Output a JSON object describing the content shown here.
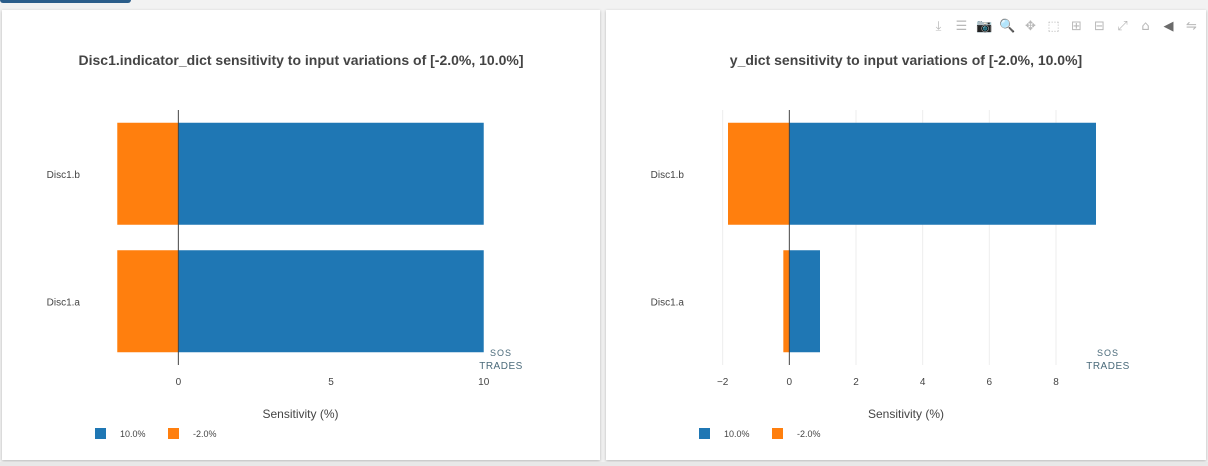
{
  "colors": {
    "series_positive": "#1f77b4",
    "series_negative": "#ff7f0e",
    "title_text": "#444444",
    "axis_text": "#444444",
    "grid": "#eeeeee",
    "zero_line": "#444444"
  },
  "watermark": {
    "line1": "SOS",
    "line2": "TRADES"
  },
  "toolbar": {
    "buttons": [
      {
        "icon": "download-icon",
        "glyph": "⤓"
      },
      {
        "icon": "list-icon",
        "glyph": "☰"
      },
      {
        "icon": "camera-icon",
        "glyph": "📷"
      },
      {
        "icon": "zoom-icon",
        "glyph": "🔍",
        "active": true
      },
      {
        "icon": "pan-icon",
        "glyph": "✥"
      },
      {
        "icon": "box-select-icon",
        "glyph": "⬚"
      },
      {
        "icon": "zoom-in-icon",
        "glyph": "⊞"
      },
      {
        "icon": "zoom-out-icon",
        "glyph": "⊟"
      },
      {
        "icon": "autoscale-icon",
        "glyph": "⤢"
      },
      {
        "icon": "home-icon",
        "glyph": "⌂"
      },
      {
        "icon": "hover-closest-icon",
        "glyph": "◀",
        "active": true
      },
      {
        "icon": "hover-compare-icon",
        "glyph": "⇋"
      }
    ]
  },
  "chart_data": [
    {
      "type": "bar",
      "orientation": "horizontal",
      "barmode": "overlay",
      "title": "Disc1.indicator_dict sensitivity to input variations of [-2.0%, 10.0%]",
      "categories": [
        "Disc1.b",
        "Disc1.a"
      ],
      "series": [
        {
          "name": "10.0%",
          "values": [
            10,
            10
          ]
        },
        {
          "name": "-2.0%",
          "values": [
            -2,
            -2
          ]
        }
      ],
      "xlabel": "Sensitivity (%)",
      "xlim": [
        -2.5,
        10.5
      ],
      "xticks": [
        0,
        5,
        10
      ],
      "grid": false,
      "legend": "bottom-left"
    },
    {
      "type": "bar",
      "orientation": "horizontal",
      "barmode": "overlay",
      "title": "y_dict sensitivity to input variations of [-2.0%, 10.0%]",
      "categories": [
        "Disc1.b",
        "Disc1.a"
      ],
      "series": [
        {
          "name": "10.0%",
          "values": [
            9.2,
            0.92
          ]
        },
        {
          "name": "-2.0%",
          "values": [
            -1.84,
            -0.18
          ]
        }
      ],
      "xlabel": "Sensitivity (%)",
      "xlim": [
        -2.5,
        9.5
      ],
      "xticks": [
        -2,
        0,
        2,
        4,
        6,
        8
      ],
      "grid": true,
      "legend": "bottom-left"
    }
  ]
}
